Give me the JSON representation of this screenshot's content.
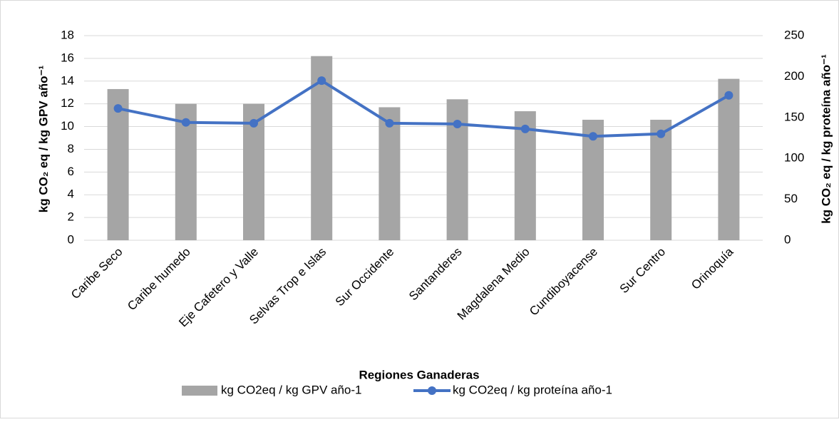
{
  "chart_data": {
    "type": "bar-line",
    "x_label": "Regiones Ganaderas",
    "y_label": "kg CO₂ eq / kg GPV año⁻¹",
    "y2_label": "kg CO₂ eq / kg proteína año⁻¹",
    "categories": [
      "Caribe Seco",
      "Caribe humedo",
      "Eje Cafetero y Valle",
      "Selvas Trop e Islas",
      "Sur Occidente",
      "Santanderes",
      "Magdalena Medio",
      "Cundiboyacense",
      "Sur Centro",
      "Orinoquía"
    ],
    "series": [
      {
        "name": "kg CO2eq / kg GPV año-1",
        "type": "bar",
        "color": "#a5a5a5",
        "values": [
          13.3,
          12.0,
          12.0,
          16.2,
          11.7,
          12.4,
          11.35,
          10.6,
          10.6,
          14.2
        ]
      },
      {
        "name": "kg CO2eq / kg proteína año-1",
        "type": "line",
        "axis": "y2",
        "color": "#4472c4",
        "values": [
          161,
          144,
          143,
          195,
          143,
          142,
          136,
          127,
          130,
          177
        ]
      }
    ],
    "ylim": [
      0,
      18
    ],
    "yticks": [
      0,
      2,
      4,
      6,
      8,
      10,
      12,
      14,
      16,
      18
    ],
    "y2lim": [
      0,
      250
    ],
    "y2ticks": [
      0,
      50,
      100,
      150,
      200,
      250
    ],
    "grid": true,
    "legend": "bottom"
  }
}
